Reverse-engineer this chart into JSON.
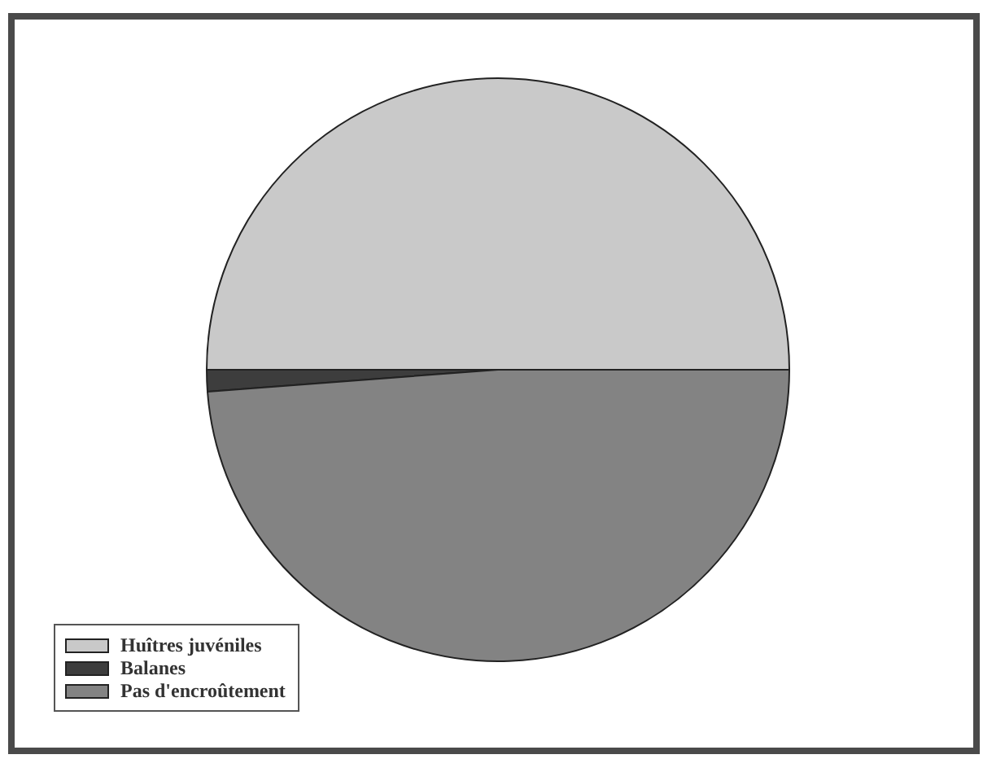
{
  "chart_data": {
    "type": "pie",
    "categories": [
      "Huîtres juvéniles",
      "Balanes",
      "Pas d'encroûtement"
    ],
    "values": [
      50,
      1.2,
      48.8
    ],
    "colors": [
      "#c9c9c9",
      "#3d3d3d",
      "#838383"
    ],
    "legend": "bottom left"
  }
}
